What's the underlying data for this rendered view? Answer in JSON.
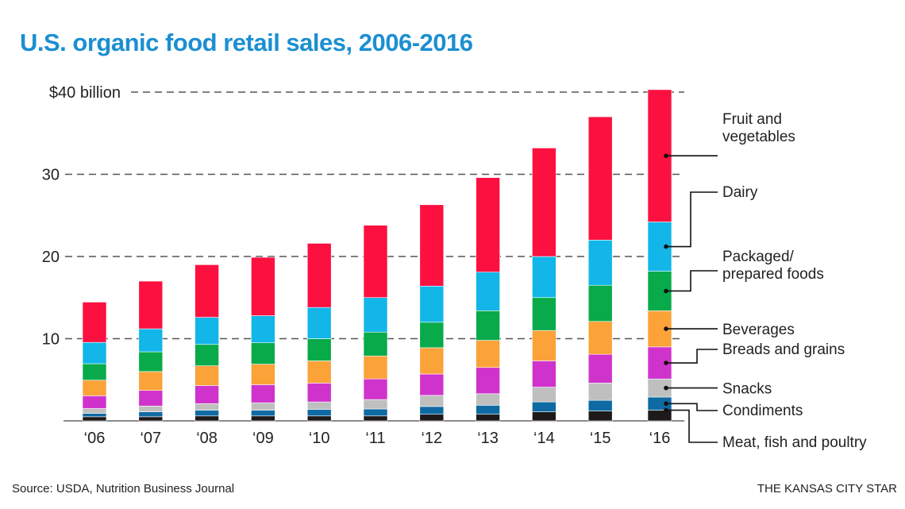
{
  "chart_data": {
    "type": "bar",
    "stacked": true,
    "title": "U.S. organic food retail sales, 2006-2016",
    "xlabel": "",
    "ylabel": "",
    "ylim": [
      0,
      40
    ],
    "y_ticks": [
      {
        "value": 10,
        "label": "10"
      },
      {
        "value": 20,
        "label": "20"
      },
      {
        "value": 30,
        "label": "30"
      },
      {
        "value": 40,
        "label": "$40 billion"
      }
    ],
    "grid": true,
    "legend_placement": "right",
    "categories": [
      "‘06",
      "‘07",
      "‘08",
      "‘09",
      "‘10",
      "‘11",
      "‘12",
      "‘13",
      "‘14",
      "‘15",
      "‘16"
    ],
    "series": [
      {
        "name": "Meat, fish and poultry",
        "color": "#1e1a1a",
        "values": [
          0.5,
          0.5,
          0.6,
          0.6,
          0.6,
          0.6,
          0.8,
          0.8,
          1.1,
          1.2,
          1.3
        ]
      },
      {
        "name": "Condiments",
        "color": "#0f6aa3",
        "values": [
          0.4,
          0.6,
          0.7,
          0.7,
          0.8,
          0.85,
          0.95,
          1.1,
          1.2,
          1.3,
          1.6
        ]
      },
      {
        "name": "Snacks",
        "color": "#bfbfbf",
        "values": [
          0.6,
          0.7,
          0.8,
          0.9,
          0.9,
          1.15,
          1.35,
          1.4,
          1.8,
          2.1,
          2.2
        ]
      },
      {
        "name": "Breads and grains",
        "color": "#d033cc",
        "values": [
          1.55,
          1.9,
          2.2,
          2.2,
          2.3,
          2.5,
          2.6,
          3.2,
          3.2,
          3.5,
          3.9
        ]
      },
      {
        "name": "Beverages",
        "color": "#fba239",
        "values": [
          1.9,
          2.3,
          2.4,
          2.5,
          2.7,
          2.8,
          3.2,
          3.3,
          3.7,
          4.0,
          4.4
        ]
      },
      {
        "name": "Packaged/ prepared foods",
        "color": "#08aa4a",
        "values": [
          2.0,
          2.4,
          2.6,
          2.6,
          2.7,
          2.9,
          3.1,
          3.6,
          4.0,
          4.4,
          4.8
        ]
      },
      {
        "name": "Dairy",
        "color": "#12b6e8",
        "values": [
          2.6,
          2.8,
          3.3,
          3.3,
          3.8,
          4.2,
          4.4,
          4.7,
          5.0,
          5.5,
          6.0
        ]
      },
      {
        "name": "Fruit and vegetables",
        "color": "#fc1040",
        "values": [
          4.9,
          5.8,
          6.4,
          7.1,
          7.8,
          8.8,
          9.9,
          11.5,
          13.2,
          15.0,
          16.1
        ]
      }
    ],
    "legend": [
      {
        "series": 7,
        "lines": [
          "Fruit and",
          "vegetables"
        ]
      },
      {
        "series": 6,
        "lines": [
          "Dairy"
        ]
      },
      {
        "series": 5,
        "lines": [
          "Packaged/",
          "prepared foods"
        ]
      },
      {
        "series": 4,
        "lines": [
          "Beverages"
        ]
      },
      {
        "series": 3,
        "lines": [
          "Breads and grains"
        ]
      },
      {
        "series": 2,
        "lines": [
          "Snacks"
        ]
      },
      {
        "series": 1,
        "lines": [
          "Condiments"
        ]
      },
      {
        "series": 0,
        "lines": [
          "Meat, fish and poultry"
        ]
      }
    ]
  },
  "title": "U.S. organic food retail sales, 2006-2016",
  "source": "Source: USDA, Nutrition Business Journal",
  "credit": "THE KANSAS CITY STAR",
  "colors": {
    "title": "#1b8fd2"
  }
}
